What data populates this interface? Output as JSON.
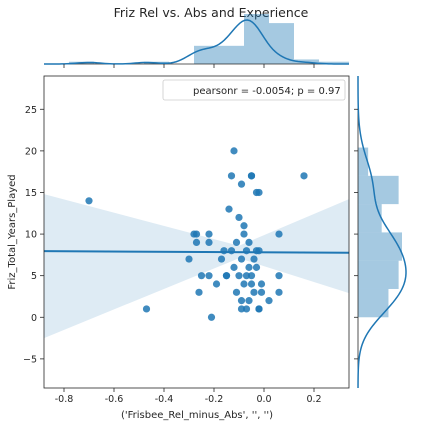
{
  "chart_data": {
    "type": "scatter",
    "title": "Friz Rel vs. Abs and Experience",
    "xlabel": "('Frisbee_Rel_minus_Abs', '', '')",
    "ylabel": "Friz_Total_Years_Played",
    "xlim": [
      -0.88,
      0.34
    ],
    "ylim": [
      -8.5,
      29
    ],
    "xticks": [
      "-0.8",
      "-0.6",
      "-0.4",
      "-0.2",
      "0.0",
      "0.2"
    ],
    "xtick_values": [
      -0.8,
      -0.6,
      -0.4,
      -0.2,
      0.0,
      0.2
    ],
    "yticks": [
      "−5",
      "0",
      "5",
      "10",
      "15",
      "20",
      "25"
    ],
    "ytick_values": [
      -5,
      0,
      5,
      10,
      15,
      20,
      25
    ],
    "grid": false,
    "legend_text": "pearsonr = -0.0054; p = 0.97",
    "legend_position": "top-right",
    "point_color": "#1f77b4",
    "regression": {
      "line": [
        [
          -0.88,
          7.95
        ],
        [
          0.34,
          7.75
        ]
      ],
      "ci_upper": [
        [
          -0.88,
          14.8
        ],
        [
          -0.1,
          8.6
        ],
        [
          0.34,
          14.2
        ]
      ],
      "ci_lower": [
        [
          -0.88,
          -2.5
        ],
        [
          -0.1,
          7.1
        ],
        [
          0.34,
          2.9
        ]
      ]
    },
    "points": [
      [
        -0.7,
        14
      ],
      [
        -0.47,
        1
      ],
      [
        -0.3,
        7
      ],
      [
        -0.28,
        10
      ],
      [
        -0.27,
        10
      ],
      [
        -0.27,
        9
      ],
      [
        -0.26,
        3
      ],
      [
        -0.25,
        5
      ],
      [
        -0.22,
        10
      ],
      [
        -0.22,
        9
      ],
      [
        -0.22,
        5
      ],
      [
        -0.21,
        0
      ],
      [
        -0.19,
        4
      ],
      [
        -0.17,
        7
      ],
      [
        -0.16,
        8
      ],
      [
        -0.15,
        5
      ],
      [
        -0.15,
        5
      ],
      [
        -0.14,
        13
      ],
      [
        -0.13,
        17
      ],
      [
        -0.13,
        8
      ],
      [
        -0.12,
        20
      ],
      [
        -0.12,
        6
      ],
      [
        -0.11,
        9
      ],
      [
        -0.11,
        3
      ],
      [
        -0.1,
        12
      ],
      [
        -0.1,
        5
      ],
      [
        -0.09,
        7
      ],
      [
        -0.09,
        16
      ],
      [
        -0.09,
        1
      ],
      [
        -0.09,
        2
      ],
      [
        -0.08,
        11
      ],
      [
        -0.08,
        4
      ],
      [
        -0.08,
        10
      ],
      [
        -0.07,
        5
      ],
      [
        -0.07,
        8
      ],
      [
        -0.07,
        1
      ],
      [
        -0.06,
        9
      ],
      [
        -0.06,
        6
      ],
      [
        -0.06,
        2
      ],
      [
        -0.05,
        17
      ],
      [
        -0.05,
        17
      ],
      [
        -0.05,
        5
      ],
      [
        -0.05,
        4
      ],
      [
        -0.04,
        7
      ],
      [
        -0.04,
        3
      ],
      [
        -0.03,
        8
      ],
      [
        -0.03,
        6
      ],
      [
        -0.03,
        15
      ],
      [
        -0.02,
        15
      ],
      [
        -0.02,
        8
      ],
      [
        -0.01,
        3
      ],
      [
        -0.01,
        4
      ],
      [
        -0.02,
        1
      ],
      [
        -0.02,
        1
      ],
      [
        0.02,
        2
      ],
      [
        0.06,
        10
      ],
      [
        0.06,
        5
      ],
      [
        0.06,
        3
      ],
      [
        0.16,
        17
      ]
    ],
    "x_marginal": {
      "bin_edges": [
        -0.88,
        -0.78,
        -0.68,
        -0.58,
        -0.48,
        -0.38,
        -0.28,
        -0.18,
        -0.08,
        0.02,
        0.12,
        0.22,
        0.34
      ],
      "counts": [
        0,
        1,
        0,
        0,
        1,
        0,
        8,
        8,
        22,
        18,
        2,
        1
      ]
    },
    "y_marginal": {
      "bin_edges": [
        0,
        3.4,
        6.8,
        10.2,
        13.6,
        17.0,
        20.4
      ],
      "counts": [
        9,
        12,
        13,
        7,
        12,
        3
      ]
    }
  }
}
